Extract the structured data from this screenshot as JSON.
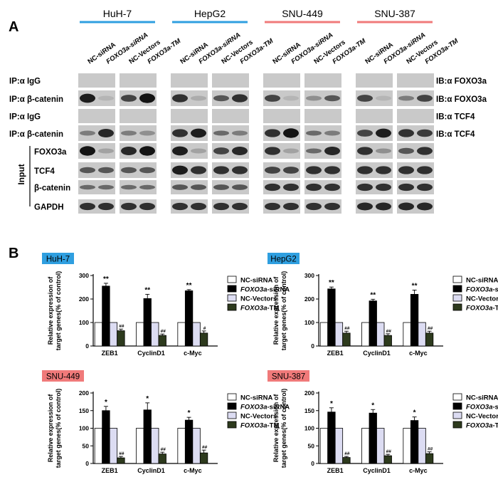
{
  "panel_a": {
    "label": "A",
    "cell_lines": [
      {
        "name": "HuH-7",
        "color": "#2f9fe0",
        "text_color": "#2f9fe0"
      },
      {
        "name": "HepG2",
        "color": "#2f9fe0",
        "text_color": "#2f9fe0"
      },
      {
        "name": "SNU-449",
        "color": "#f07a7a",
        "text_color": "#f07a7a"
      },
      {
        "name": "SNU-387",
        "color": "#f07a7a",
        "text_color": "#f07a7a"
      }
    ],
    "lane_labels": [
      "NC-siRNA",
      "FOXO3a-siRNA",
      "NC-Vectors",
      "FOXO3a-TM"
    ],
    "rows": [
      {
        "left": "IP:α IgG",
        "right": "IB:α FOXO3a",
        "bands": [
          [
            0,
            0,
            0,
            0
          ],
          [
            0,
            0,
            0,
            0
          ],
          [
            0,
            0,
            0,
            0
          ],
          [
            0,
            0,
            0,
            0
          ]
        ]
      },
      {
        "left": "IP:α β-catenin",
        "right": "IB:α FOXO3a",
        "bands": [
          [
            0.9,
            0.1,
            0.7,
            0.95
          ],
          [
            0.8,
            0.15,
            0.6,
            0.8
          ],
          [
            0.7,
            0.1,
            0.3,
            0.6
          ],
          [
            0.7,
            0.1,
            0.4,
            0.7
          ]
        ]
      },
      {
        "left": "IP:α IgG",
        "right": "IB:α TCF4",
        "bands": [
          [
            0,
            0,
            0,
            0
          ],
          [
            0,
            0,
            0,
            0
          ],
          [
            0,
            0,
            0,
            0
          ],
          [
            0,
            0,
            0,
            0
          ]
        ]
      },
      {
        "left": "IP:α β-catenin",
        "right": "IB:α TCF4",
        "bands": [
          [
            0.4,
            0.85,
            0.4,
            0.3
          ],
          [
            0.8,
            0.9,
            0.5,
            0.4
          ],
          [
            0.8,
            0.95,
            0.5,
            0.4
          ],
          [
            0.7,
            0.9,
            0.8,
            0.75
          ]
        ]
      },
      {
        "left": "FOXO3a",
        "right": "",
        "bands": [
          [
            0.95,
            0.2,
            0.85,
            0.95
          ],
          [
            0.9,
            0.2,
            0.7,
            0.85
          ],
          [
            0.8,
            0.2,
            0.5,
            0.85
          ],
          [
            0.8,
            0.3,
            0.6,
            0.8
          ]
        ]
      },
      {
        "left": "TCF4",
        "right": "",
        "bands": [
          [
            0.6,
            0.6,
            0.6,
            0.6
          ],
          [
            0.9,
            0.8,
            0.8,
            0.8
          ],
          [
            0.7,
            0.7,
            0.8,
            0.8
          ],
          [
            0.8,
            0.8,
            0.8,
            0.8
          ]
        ]
      },
      {
        "left": "β-catenin",
        "right": "",
        "bands": [
          [
            0.5,
            0.5,
            0.5,
            0.5
          ],
          [
            0.6,
            0.6,
            0.6,
            0.6
          ],
          [
            0.8,
            0.8,
            0.8,
            0.8
          ],
          [
            0.8,
            0.8,
            0.8,
            0.8
          ]
        ]
      },
      {
        "left": "GAPDH",
        "right": "",
        "bands": [
          [
            0.8,
            0.8,
            0.8,
            0.8
          ],
          [
            0.8,
            0.8,
            0.8,
            0.8
          ],
          [
            0.8,
            0.8,
            0.8,
            0.8
          ],
          [
            0.85,
            0.85,
            0.85,
            0.85
          ]
        ]
      }
    ],
    "input_label": "Input"
  },
  "panel_b": {
    "label": "B",
    "ylabel_line1": "Relative expression of",
    "ylabel_line2": "target genes(% of control)",
    "legend": [
      {
        "name": "NC-siRNA",
        "color": "#ffffff"
      },
      {
        "name": "FOXO3a-siRNA",
        "color": "#000000"
      },
      {
        "name": "NC-Vectors",
        "color": "#dcdcf2"
      },
      {
        "name": "FOXO3a-TM",
        "color": "#2d3a1d"
      }
    ]
  },
  "chart_data": [
    {
      "type": "bar",
      "title": "HuH-7",
      "title_bg": "#2f9fe0",
      "categories": [
        "ZEB1",
        "CyclinD1",
        "c-Myc"
      ],
      "ylim": [
        0,
        300
      ],
      "yticks": [
        0,
        100,
        200,
        300
      ],
      "series": [
        {
          "name": "NC-siRNA",
          "values": [
            100,
            100,
            100
          ]
        },
        {
          "name": "FOXO3a-siRNA",
          "values": [
            255,
            202,
            235
          ]
        },
        {
          "name": "NC-Vectors",
          "values": [
            100,
            100,
            100
          ]
        },
        {
          "name": "FOXO3a-TM",
          "values": [
            65,
            45,
            55
          ]
        }
      ],
      "errors": [
        [
          0,
          0,
          0
        ],
        [
          12,
          18,
          5
        ],
        [
          0,
          0,
          0
        ],
        [
          7,
          6,
          9
        ]
      ],
      "marks_siRNA": [
        "**",
        "**",
        "**"
      ],
      "marks_TM": [
        "##",
        "##",
        "#"
      ]
    },
    {
      "type": "bar",
      "title": "HepG2",
      "title_bg": "#2f9fe0",
      "categories": [
        "ZEB1",
        "CyclinD1",
        "c-Myc"
      ],
      "ylim": [
        0,
        300
      ],
      "yticks": [
        0,
        100,
        200,
        300
      ],
      "series": [
        {
          "name": "NC-siRNA",
          "values": [
            100,
            100,
            100
          ]
        },
        {
          "name": "FOXO3a-siRNA",
          "values": [
            243,
            192,
            220
          ]
        },
        {
          "name": "NC-Vectors",
          "values": [
            100,
            100,
            100
          ]
        },
        {
          "name": "FOXO3a-TM",
          "values": [
            55,
            45,
            55
          ]
        }
      ],
      "errors": [
        [
          0,
          0,
          0
        ],
        [
          8,
          7,
          18
        ],
        [
          0,
          0,
          0
        ],
        [
          8,
          7,
          8
        ]
      ],
      "marks_siRNA": [
        "**",
        "**",
        "**"
      ],
      "marks_TM": [
        "##",
        "##",
        "##"
      ]
    },
    {
      "type": "bar",
      "title": "SNU-449",
      "title_bg": "#f07a7a",
      "categories": [
        "ZEB1",
        "CyclinD1",
        "c-Myc"
      ],
      "ylim": [
        0,
        200
      ],
      "yticks": [
        0,
        50,
        100,
        150,
        200
      ],
      "series": [
        {
          "name": "NC-siRNA",
          "values": [
            100,
            100,
            100
          ]
        },
        {
          "name": "FOXO3a-siRNA",
          "values": [
            150,
            152,
            123
          ]
        },
        {
          "name": "NC-Vectors",
          "values": [
            100,
            100,
            100
          ]
        },
        {
          "name": "FOXO3a-TM",
          "values": [
            16,
            27,
            30
          ]
        }
      ],
      "errors": [
        [
          0,
          0,
          0
        ],
        [
          12,
          20,
          8
        ],
        [
          0,
          0,
          0
        ],
        [
          4,
          5,
          8
        ]
      ],
      "marks_siRNA": [
        "*",
        "*",
        "*"
      ],
      "marks_TM": [
        "##",
        "##",
        "##"
      ]
    },
    {
      "type": "bar",
      "title": "SNU-387",
      "title_bg": "#f07a7a",
      "categories": [
        "ZEB1",
        "CyclinD1",
        "c-Myc"
      ],
      "ylim": [
        0,
        200
      ],
      "yticks": [
        0,
        50,
        100,
        150,
        200
      ],
      "series": [
        {
          "name": "NC-siRNA",
          "values": [
            100,
            100,
            100
          ]
        },
        {
          "name": "FOXO3a-siRNA",
          "values": [
            146,
            143,
            122
          ]
        },
        {
          "name": "NC-Vectors",
          "values": [
            100,
            100,
            100
          ]
        },
        {
          "name": "FOXO3a-TM",
          "values": [
            17,
            22,
            28
          ]
        }
      ],
      "errors": [
        [
          0,
          0,
          0
        ],
        [
          12,
          10,
          10
        ],
        [
          0,
          0,
          0
        ],
        [
          3,
          4,
          5
        ]
      ],
      "marks_siRNA": [
        "*",
        "*",
        "*"
      ],
      "marks_TM": [
        "##",
        "##",
        "##"
      ]
    }
  ]
}
